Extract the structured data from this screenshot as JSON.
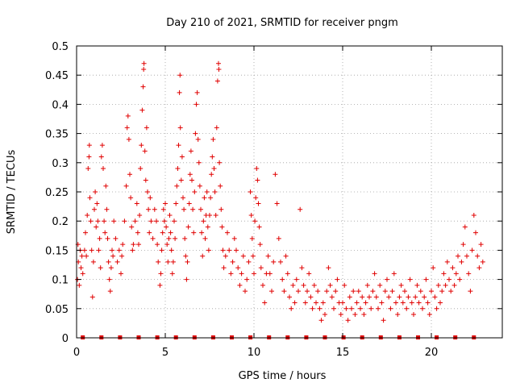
{
  "chart_data": {
    "type": "scatter",
    "title": "Day 210 of 2021, SRMTID for receiver pngm",
    "xlabel": "GPS time / hours",
    "ylabel": "SRMTID / TECUs",
    "xlim": [
      0,
      24
    ],
    "ylim": [
      0,
      0.5
    ],
    "xticks": [
      0,
      5,
      10,
      15,
      20
    ],
    "yticks": [
      0,
      0.05,
      0.1,
      0.15,
      0.2,
      0.25,
      0.3,
      0.35,
      0.4,
      0.45,
      0.5
    ],
    "ytick_labels": [
      "0",
      "0.05",
      "0.1",
      "0.15",
      "0.2",
      "0.25",
      "0.3",
      "0.35",
      "0.4",
      "0.45",
      "0.5"
    ],
    "grid": true,
    "marker": "plus",
    "color": "#e00000",
    "series": [
      {
        "name": "SRMTID",
        "points": [
          [
            0.05,
            0.1
          ],
          [
            0.08,
            0.16
          ],
          [
            0.1,
            0.13
          ],
          [
            0.15,
            0.09
          ],
          [
            0.2,
            0.15
          ],
          [
            0.25,
            0.12
          ],
          [
            0.3,
            0.14
          ],
          [
            0.35,
            0.11
          ],
          [
            0.45,
            0.15
          ],
          [
            0.5,
            0.18
          ],
          [
            0.55,
            0.14
          ],
          [
            0.6,
            0.21
          ],
          [
            0.65,
            0.29
          ],
          [
            0.7,
            0.31
          ],
          [
            0.72,
            0.33
          ],
          [
            0.75,
            0.24
          ],
          [
            0.8,
            0.2
          ],
          [
            0.85,
            0.15
          ],
          [
            0.9,
            0.07
          ],
          [
            0.95,
            0.13
          ],
          [
            1.0,
            0.22
          ],
          [
            1.05,
            0.25
          ],
          [
            1.1,
            0.19
          ],
          [
            1.15,
            0.23
          ],
          [
            1.2,
            0.2
          ],
          [
            1.25,
            0.15
          ],
          [
            1.3,
            0.17
          ],
          [
            1.35,
            0.12
          ],
          [
            1.4,
            0.31
          ],
          [
            1.45,
            0.33
          ],
          [
            1.5,
            0.29
          ],
          [
            1.55,
            0.2
          ],
          [
            1.6,
            0.18
          ],
          [
            1.65,
            0.26
          ],
          [
            1.7,
            0.22
          ],
          [
            1.75,
            0.17
          ],
          [
            1.8,
            0.13
          ],
          [
            1.85,
            0.1
          ],
          [
            1.9,
            0.08
          ],
          [
            1.95,
            0.12
          ],
          [
            2.0,
            0.15
          ],
          [
            2.05,
            0.14
          ],
          [
            2.1,
            0.2
          ],
          [
            2.2,
            0.17
          ],
          [
            2.3,
            0.13
          ],
          [
            2.4,
            0.15
          ],
          [
            2.5,
            0.11
          ],
          [
            2.55,
            0.14
          ],
          [
            2.6,
            0.16
          ],
          [
            2.7,
            0.2
          ],
          [
            2.8,
            0.26
          ],
          [
            2.85,
            0.36
          ],
          [
            2.9,
            0.38
          ],
          [
            2.95,
            0.34
          ],
          [
            3.0,
            0.28
          ],
          [
            3.05,
            0.24
          ],
          [
            3.1,
            0.19
          ],
          [
            3.15,
            0.15
          ],
          [
            3.2,
            0.16
          ],
          [
            3.3,
            0.2
          ],
          [
            3.4,
            0.23
          ],
          [
            3.45,
            0.18
          ],
          [
            3.5,
            0.16
          ],
          [
            3.55,
            0.21
          ],
          [
            3.6,
            0.29
          ],
          [
            3.65,
            0.33
          ],
          [
            3.7,
            0.39
          ],
          [
            3.75,
            0.43
          ],
          [
            3.78,
            0.46
          ],
          [
            3.8,
            0.47
          ],
          [
            3.85,
            0.32
          ],
          [
            3.9,
            0.27
          ],
          [
            3.95,
            0.36
          ],
          [
            4.0,
            0.25
          ],
          [
            4.05,
            0.22
          ],
          [
            4.1,
            0.18
          ],
          [
            4.15,
            0.24
          ],
          [
            4.2,
            0.2
          ],
          [
            4.3,
            0.17
          ],
          [
            4.4,
            0.22
          ],
          [
            4.5,
            0.2
          ],
          [
            4.55,
            0.16
          ],
          [
            4.6,
            0.13
          ],
          [
            4.7,
            0.09
          ],
          [
            4.75,
            0.11
          ],
          [
            4.8,
            0.15
          ],
          [
            4.85,
            0.18
          ],
          [
            4.9,
            0.22
          ],
          [
            4.95,
            0.2
          ],
          [
            5.0,
            0.23
          ],
          [
            5.05,
            0.19
          ],
          [
            5.1,
            0.16
          ],
          [
            5.15,
            0.13
          ],
          [
            5.2,
            0.17
          ],
          [
            5.25,
            0.21
          ],
          [
            5.3,
            0.18
          ],
          [
            5.35,
            0.15
          ],
          [
            5.4,
            0.11
          ],
          [
            5.45,
            0.13
          ],
          [
            5.5,
            0.2
          ],
          [
            5.55,
            0.17
          ],
          [
            5.6,
            0.23
          ],
          [
            5.65,
            0.26
          ],
          [
            5.7,
            0.29
          ],
          [
            5.75,
            0.33
          ],
          [
            5.8,
            0.42
          ],
          [
            5.83,
            0.45
          ],
          [
            5.85,
            0.36
          ],
          [
            5.9,
            0.27
          ],
          [
            5.95,
            0.31
          ],
          [
            6.0,
            0.24
          ],
          [
            6.05,
            0.22
          ],
          [
            6.1,
            0.17
          ],
          [
            6.15,
            0.14
          ],
          [
            6.2,
            0.1
          ],
          [
            6.25,
            0.13
          ],
          [
            6.3,
            0.19
          ],
          [
            6.35,
            0.23
          ],
          [
            6.4,
            0.28
          ],
          [
            6.45,
            0.32
          ],
          [
            6.5,
            0.27
          ],
          [
            6.55,
            0.22
          ],
          [
            6.6,
            0.18
          ],
          [
            6.65,
            0.25
          ],
          [
            6.7,
            0.35
          ],
          [
            6.75,
            0.4
          ],
          [
            6.8,
            0.42
          ],
          [
            6.85,
            0.34
          ],
          [
            6.9,
            0.3
          ],
          [
            6.95,
            0.26
          ],
          [
            7.0,
            0.22
          ],
          [
            7.05,
            0.18
          ],
          [
            7.1,
            0.14
          ],
          [
            7.15,
            0.2
          ],
          [
            7.2,
            0.24
          ],
          [
            7.25,
            0.17
          ],
          [
            7.3,
            0.21
          ],
          [
            7.35,
            0.25
          ],
          [
            7.4,
            0.19
          ],
          [
            7.45,
            0.15
          ],
          [
            7.5,
            0.21
          ],
          [
            7.55,
            0.24
          ],
          [
            7.6,
            0.28
          ],
          [
            7.65,
            0.31
          ],
          [
            7.7,
            0.34
          ],
          [
            7.75,
            0.29
          ],
          [
            7.8,
            0.25
          ],
          [
            7.85,
            0.21
          ],
          [
            7.9,
            0.36
          ],
          [
            7.95,
            0.44
          ],
          [
            8.0,
            0.47
          ],
          [
            8.02,
            0.46
          ],
          [
            8.05,
            0.3
          ],
          [
            8.1,
            0.26
          ],
          [
            8.15,
            0.22
          ],
          [
            8.2,
            0.19
          ],
          [
            8.25,
            0.15
          ],
          [
            8.3,
            0.12
          ],
          [
            8.4,
            0.14
          ],
          [
            8.5,
            0.18
          ],
          [
            8.6,
            0.15
          ],
          [
            8.7,
            0.11
          ],
          [
            8.8,
            0.13
          ],
          [
            8.9,
            0.17
          ],
          [
            9.0,
            0.15
          ],
          [
            9.1,
            0.12
          ],
          [
            9.2,
            0.09
          ],
          [
            9.3,
            0.11
          ],
          [
            9.4,
            0.14
          ],
          [
            9.5,
            0.08
          ],
          [
            9.6,
            0.1
          ],
          [
            9.7,
            0.13
          ],
          [
            9.8,
            0.25
          ],
          [
            9.85,
            0.21
          ],
          [
            9.9,
            0.17
          ],
          [
            9.95,
            0.14
          ],
          [
            10.0,
            0.11
          ],
          [
            10.05,
            0.2
          ],
          [
            10.1,
            0.24
          ],
          [
            10.15,
            0.29
          ],
          [
            10.2,
            0.27
          ],
          [
            10.25,
            0.23
          ],
          [
            10.3,
            0.19
          ],
          [
            10.35,
            0.16
          ],
          [
            10.4,
            0.12
          ],
          [
            10.5,
            0.09
          ],
          [
            10.6,
            0.06
          ],
          [
            10.7,
            0.11
          ],
          [
            10.8,
            0.14
          ],
          [
            10.9,
            0.11
          ],
          [
            11.0,
            0.08
          ],
          [
            11.1,
            0.13
          ],
          [
            11.2,
            0.28
          ],
          [
            11.3,
            0.23
          ],
          [
            11.4,
            0.17
          ],
          [
            11.5,
            0.13
          ],
          [
            11.6,
            0.1
          ],
          [
            11.7,
            0.08
          ],
          [
            11.8,
            0.14
          ],
          [
            11.9,
            0.11
          ],
          [
            12.0,
            0.07
          ],
          [
            12.1,
            0.05
          ],
          [
            12.2,
            0.09
          ],
          [
            12.3,
            0.06
          ],
          [
            12.4,
            0.1
          ],
          [
            12.5,
            0.08
          ],
          [
            12.6,
            0.22
          ],
          [
            12.7,
            0.12
          ],
          [
            12.8,
            0.09
          ],
          [
            12.9,
            0.06
          ],
          [
            13.0,
            0.08
          ],
          [
            13.1,
            0.11
          ],
          [
            13.2,
            0.07
          ],
          [
            13.3,
            0.05
          ],
          [
            13.4,
            0.09
          ],
          [
            13.5,
            0.06
          ],
          [
            13.6,
            0.08
          ],
          [
            13.7,
            0.05
          ],
          [
            13.8,
            0.03
          ],
          [
            13.9,
            0.06
          ],
          [
            14.0,
            0.04
          ],
          [
            14.1,
            0.08
          ],
          [
            14.2,
            0.12
          ],
          [
            14.3,
            0.09
          ],
          [
            14.4,
            0.07
          ],
          [
            14.5,
            0.05
          ],
          [
            14.6,
            0.08
          ],
          [
            14.7,
            0.1
          ],
          [
            14.8,
            0.06
          ],
          [
            14.9,
            0.04
          ],
          [
            15.0,
            0.06
          ],
          [
            15.1,
            0.09
          ],
          [
            15.2,
            0.05
          ],
          [
            15.3,
            0.03
          ],
          [
            15.4,
            0.07
          ],
          [
            15.5,
            0.05
          ],
          [
            15.6,
            0.08
          ],
          [
            15.7,
            0.04
          ],
          [
            15.8,
            0.06
          ],
          [
            15.9,
            0.08
          ],
          [
            16.0,
            0.05
          ],
          [
            16.1,
            0.07
          ],
          [
            16.2,
            0.04
          ],
          [
            16.3,
            0.06
          ],
          [
            16.4,
            0.09
          ],
          [
            16.5,
            0.07
          ],
          [
            16.6,
            0.05
          ],
          [
            16.7,
            0.08
          ],
          [
            16.8,
            0.11
          ],
          [
            16.9,
            0.07
          ],
          [
            17.0,
            0.05
          ],
          [
            17.1,
            0.09
          ],
          [
            17.2,
            0.06
          ],
          [
            17.3,
            0.03
          ],
          [
            17.4,
            0.08
          ],
          [
            17.5,
            0.1
          ],
          [
            17.6,
            0.07
          ],
          [
            17.7,
            0.05
          ],
          [
            17.8,
            0.08
          ],
          [
            17.9,
            0.11
          ],
          [
            18.0,
            0.06
          ],
          [
            18.1,
            0.04
          ],
          [
            18.2,
            0.07
          ],
          [
            18.3,
            0.09
          ],
          [
            18.4,
            0.06
          ],
          [
            18.5,
            0.08
          ],
          [
            18.6,
            0.05
          ],
          [
            18.7,
            0.07
          ],
          [
            18.8,
            0.1
          ],
          [
            18.9,
            0.06
          ],
          [
            19.0,
            0.04
          ],
          [
            19.1,
            0.07
          ],
          [
            19.2,
            0.09
          ],
          [
            19.3,
            0.06
          ],
          [
            19.4,
            0.08
          ],
          [
            19.5,
            0.05
          ],
          [
            19.6,
            0.07
          ],
          [
            19.7,
            0.1
          ],
          [
            19.8,
            0.06
          ],
          [
            19.9,
            0.04
          ],
          [
            20.0,
            0.08
          ],
          [
            20.1,
            0.12
          ],
          [
            20.2,
            0.07
          ],
          [
            20.3,
            0.05
          ],
          [
            20.4,
            0.09
          ],
          [
            20.5,
            0.06
          ],
          [
            20.6,
            0.08
          ],
          [
            20.7,
            0.11
          ],
          [
            20.8,
            0.09
          ],
          [
            20.9,
            0.13
          ],
          [
            21.0,
            0.1
          ],
          [
            21.1,
            0.08
          ],
          [
            21.2,
            0.12
          ],
          [
            21.3,
            0.09
          ],
          [
            21.4,
            0.11
          ],
          [
            21.5,
            0.14
          ],
          [
            21.6,
            0.1
          ],
          [
            21.7,
            0.13
          ],
          [
            21.8,
            0.16
          ],
          [
            21.9,
            0.19
          ],
          [
            22.0,
            0.14
          ],
          [
            22.1,
            0.11
          ],
          [
            22.2,
            0.08
          ],
          [
            22.3,
            0.15
          ],
          [
            22.4,
            0.21
          ],
          [
            22.5,
            0.18
          ],
          [
            22.6,
            0.14
          ],
          [
            22.7,
            0.12
          ],
          [
            22.8,
            0.16
          ],
          [
            22.9,
            0.13
          ]
        ]
      }
    ],
    "baseline_markers_x": [
      0.35,
      1.4,
      2.45,
      3.5,
      4.55,
      5.6,
      6.65,
      7.7,
      8.75,
      9.8,
      10.85,
      11.9,
      12.95,
      14.0,
      15.05,
      16.1,
      17.15,
      18.2,
      19.25,
      20.3,
      21.35,
      22.4
    ]
  }
}
